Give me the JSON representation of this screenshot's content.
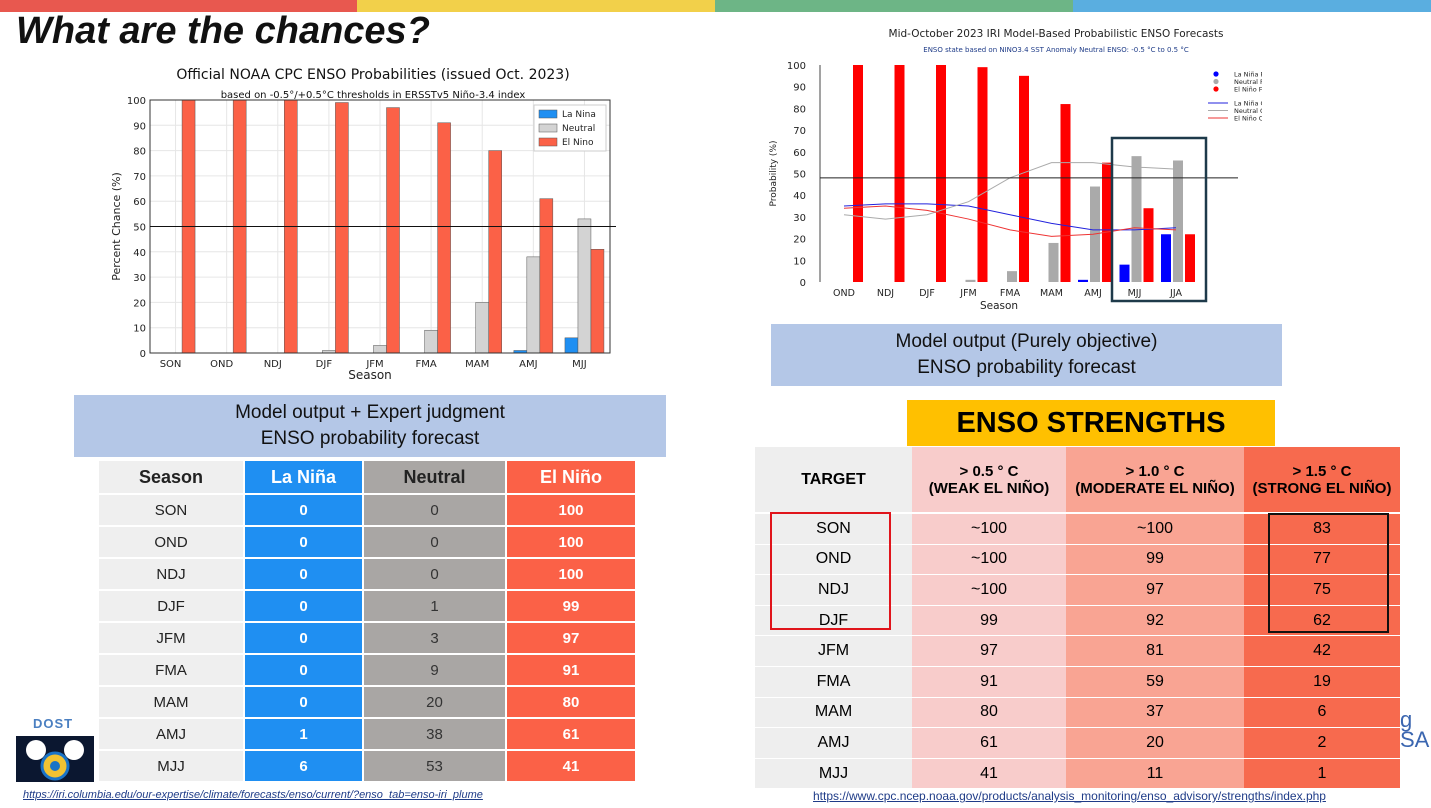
{
  "slide": {
    "title": "What are the chances?",
    "accent_colors": [
      "#e8584f",
      "#f2d04a",
      "#6db586",
      "#5aaee0"
    ]
  },
  "logo": {
    "text": "DOST",
    "right_fragment": "g\nSA"
  },
  "left_caption": {
    "line1": "Model output + Expert judgment",
    "line2": "ENSO probability forecast"
  },
  "right_caption": {
    "line1": "Model output (Purely objective)",
    "line2": "ENSO probability forecast"
  },
  "prob_table": {
    "headers": [
      "Season",
      "La Niña",
      "Neutral",
      "El Niño"
    ],
    "rows": [
      [
        "SON",
        "0",
        "0",
        "100"
      ],
      [
        "OND",
        "0",
        "0",
        "100"
      ],
      [
        "NDJ",
        "0",
        "0",
        "100"
      ],
      [
        "DJF",
        "0",
        "1",
        "99"
      ],
      [
        "JFM",
        "0",
        "3",
        "97"
      ],
      [
        "FMA",
        "0",
        "9",
        "91"
      ],
      [
        "MAM",
        "0",
        "20",
        "80"
      ],
      [
        "AMJ",
        "1",
        "38",
        "61"
      ],
      [
        "MJJ",
        "6",
        "53",
        "41"
      ]
    ]
  },
  "strengths": {
    "title": "ENSO STRENGTHS",
    "headers": [
      {
        "line1": "TARGET",
        "line2": ""
      },
      {
        "line1": "> 0.5 ° C",
        "line2": "(WEAK EL NIÑO)"
      },
      {
        "line1": "> 1.0 ° C",
        "line2": "(MODERATE EL NIÑO)"
      },
      {
        "line1": "> 1.5 ° C",
        "line2": "(STRONG EL NIÑO)"
      }
    ],
    "rows": [
      [
        "SON",
        "~100",
        "~100",
        "83"
      ],
      [
        "OND",
        "~100",
        "99",
        "77"
      ],
      [
        "NDJ",
        "~100",
        "97",
        "75"
      ],
      [
        "DJF",
        "99",
        "92",
        "62"
      ],
      [
        "JFM",
        "97",
        "81",
        "42"
      ],
      [
        "FMA",
        "91",
        "59",
        "19"
      ],
      [
        "MAM",
        "80",
        "37",
        "6"
      ],
      [
        "AMJ",
        "61",
        "20",
        "2"
      ],
      [
        "MJJ",
        "41",
        "11",
        "1"
      ]
    ]
  },
  "urls": {
    "left": "https://iri.columbia.edu/our-expertise/climate/forecasts/enso/current/?enso_tab=enso-iri_plume",
    "right": "https://www.cpc.ncep.noaa.gov/products/analysis_monitoring/enso_advisory/strengths/index.php"
  },
  "chart_data": [
    {
      "type": "bar",
      "title": "Official NOAA CPC ENSO Probabilities (issued Oct. 2023)",
      "subtitle": "based on -0.5°/+0.5°C thresholds in ERSSTv5 Niño-3.4 index",
      "xlabel": "Season",
      "ylabel": "Percent Chance (%)",
      "ylim": [
        0,
        100
      ],
      "yticks": [
        0,
        10,
        20,
        30,
        40,
        50,
        60,
        70,
        80,
        90,
        100
      ],
      "categories": [
        "SON",
        "OND",
        "NDJ",
        "DJF",
        "JFM",
        "FMA",
        "MAM",
        "AMJ",
        "MJJ"
      ],
      "reference_line": 50,
      "grid": true,
      "legend_position": "top-right",
      "series": [
        {
          "name": "La Nina",
          "color": "#1f8ff2",
          "values": [
            0,
            0,
            0,
            0,
            0,
            0,
            0,
            1,
            6
          ]
        },
        {
          "name": "Neutral",
          "color": "#d3d3d3",
          "values": [
            0,
            0,
            0,
            1,
            3,
            9,
            20,
            38,
            53
          ]
        },
        {
          "name": "El Nino",
          "color": "#fb6147",
          "values": [
            100,
            100,
            100,
            99,
            97,
            91,
            80,
            61,
            41
          ]
        }
      ]
    },
    {
      "type": "bar",
      "title": "Mid-October 2023 IRI Model-Based Probabilistic ENSO Forecasts",
      "subtitle": "ENSO state based on NINO3.4 SST Anomaly Neutral ENSO: -0.5 °C to 0.5 °C",
      "xlabel": "Season",
      "ylabel": "Probability (%)",
      "ylim": [
        0,
        100
      ],
      "yticks": [
        0,
        10,
        20,
        30,
        40,
        50,
        60,
        70,
        80,
        90,
        100
      ],
      "categories": [
        "OND",
        "NDJ",
        "DJF",
        "JFM",
        "FMA",
        "MAM",
        "AMJ",
        "MJJ",
        "JJA"
      ],
      "reference_line": 48,
      "grid": false,
      "legend_position": "top-right",
      "series": [
        {
          "name": "La Niña Forecast Probability",
          "color": "#0000ff",
          "values": [
            0,
            0,
            0,
            0,
            0,
            0,
            1,
            8,
            22
          ]
        },
        {
          "name": "Neutral Forecast Probability",
          "color": "#aaaaaa",
          "values": [
            0,
            0,
            0,
            1,
            5,
            18,
            44,
            58,
            56
          ]
        },
        {
          "name": "El Niño Forecast Probability",
          "color": "#ff0000",
          "values": [
            100,
            100,
            100,
            99,
            95,
            82,
            55,
            34,
            22
          ]
        }
      ],
      "climatology": [
        {
          "name": "La Niña Climatology",
          "color": "#2222dd",
          "values": [
            35,
            36,
            36,
            35,
            31,
            27,
            24,
            24,
            25
          ]
        },
        {
          "name": "Neutral Climatology",
          "color": "#aaaaaa",
          "values": [
            31,
            29,
            31,
            37,
            48,
            55,
            55,
            53,
            52
          ]
        },
        {
          "name": "El Niño Climatology",
          "color": "#ee3333",
          "values": [
            34,
            35,
            33,
            29,
            24,
            21,
            22,
            25,
            24
          ]
        }
      ]
    }
  ]
}
